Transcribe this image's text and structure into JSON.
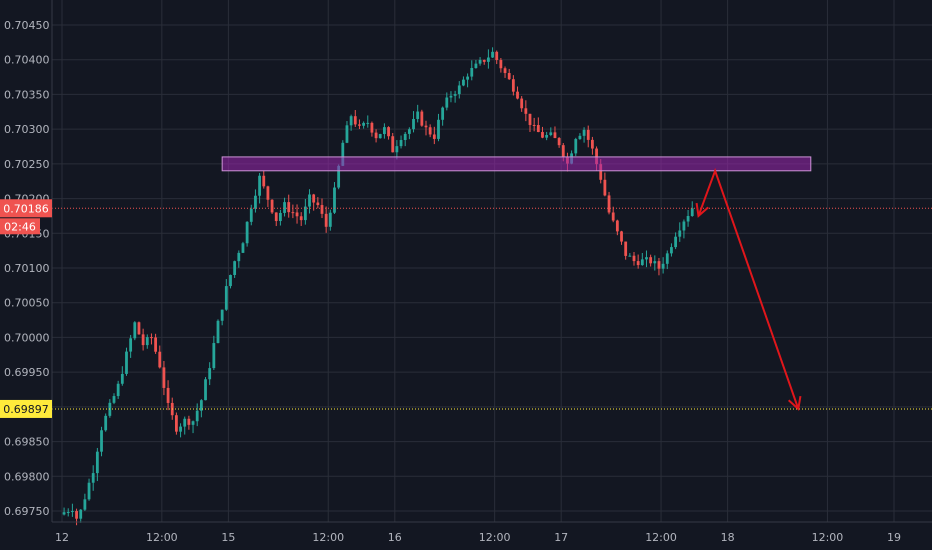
{
  "colors": {
    "background": "#131722",
    "grid": "#2a2e39",
    "up": "#26a69a",
    "down": "#ef5350",
    "zone": "#9c27b0",
    "arrow": "#e0161b",
    "current_price_line": "#ef5350",
    "target_line": "#ffeb3b"
  },
  "chart_data": {
    "type": "candlestick",
    "instrument_timeframe": "hourly",
    "y_axis": {
      "ylim": [
        0.6973,
        0.7047
      ],
      "ticks": [
        "0.69750",
        "0.69800",
        "0.69850",
        "0.69900",
        "0.69950",
        "0.70000",
        "0.70050",
        "0.70100",
        "0.70150",
        "0.70200",
        "0.70250",
        "0.70300",
        "0.70350",
        "0.70400",
        "0.70450"
      ],
      "tick_values": [
        0.6975,
        0.698,
        0.6985,
        0.699,
        0.6995,
        0.7,
        0.7005,
        0.701,
        0.7015,
        0.702,
        0.7025,
        0.703,
        0.7035,
        0.704,
        0.7045
      ]
    },
    "x_axis": {
      "xlim_hours": [
        -1,
        201
      ],
      "ticks": [
        "12",
        "12:00",
        "15",
        "12:00",
        "16",
        "12:00",
        "17",
        "12:00",
        "18",
        "12:00",
        "19"
      ],
      "tick_hours": [
        0,
        24,
        40,
        64,
        80,
        104,
        120,
        144,
        160,
        184,
        200
      ]
    },
    "price_anchors": [
      [
        0,
        0.69745
      ],
      [
        3,
        0.69755
      ],
      [
        4,
        0.6974
      ],
      [
        5,
        0.6975
      ],
      [
        6,
        0.6977
      ],
      [
        8,
        0.6981
      ],
      [
        10,
        0.6987
      ],
      [
        12,
        0.699
      ],
      [
        14,
        0.6993
      ],
      [
        16,
        0.69975
      ],
      [
        18,
        0.7002
      ],
      [
        20,
        0.6999
      ],
      [
        22,
        0.7
      ],
      [
        24,
        0.6996
      ],
      [
        26,
        0.699
      ],
      [
        28,
        0.6987
      ],
      [
        30,
        0.6988
      ],
      [
        32,
        0.6988
      ],
      [
        34,
        0.6991
      ],
      [
        36,
        0.6996
      ],
      [
        38,
        0.7002
      ],
      [
        40,
        0.7007
      ],
      [
        42,
        0.7011
      ],
      [
        44,
        0.7014
      ],
      [
        46,
        0.7019
      ],
      [
        48,
        0.7023
      ],
      [
        50,
        0.702
      ],
      [
        52,
        0.7017
      ],
      [
        54,
        0.7019
      ],
      [
        56,
        0.7018
      ],
      [
        58,
        0.7017
      ],
      [
        60,
        0.702
      ],
      [
        62,
        0.7019
      ],
      [
        64,
        0.7016
      ],
      [
        66,
        0.7021
      ],
      [
        68,
        0.7028
      ],
      [
        70,
        0.7032
      ],
      [
        72,
        0.703
      ],
      [
        74,
        0.7031
      ],
      [
        76,
        0.7029
      ],
      [
        78,
        0.703
      ],
      [
        80,
        0.7027
      ],
      [
        82,
        0.7029
      ],
      [
        84,
        0.703
      ],
      [
        86,
        0.7032
      ],
      [
        88,
        0.703
      ],
      [
        90,
        0.7029
      ],
      [
        92,
        0.7033
      ],
      [
        94,
        0.7035
      ],
      [
        96,
        0.7036
      ],
      [
        98,
        0.7038
      ],
      [
        100,
        0.7039
      ],
      [
        102,
        0.704
      ],
      [
        104,
        0.7041
      ],
      [
        106,
        0.7039
      ],
      [
        108,
        0.7037
      ],
      [
        110,
        0.7035
      ],
      [
        112,
        0.7032
      ],
      [
        114,
        0.703
      ],
      [
        116,
        0.7029
      ],
      [
        118,
        0.7029
      ],
      [
        120,
        0.7028
      ],
      [
        122,
        0.7025
      ],
      [
        124,
        0.7029
      ],
      [
        126,
        0.703
      ],
      [
        128,
        0.7027
      ],
      [
        130,
        0.7023
      ],
      [
        132,
        0.7018
      ],
      [
        134,
        0.7015
      ],
      [
        136,
        0.7012
      ],
      [
        138,
        0.7011
      ],
      [
        140,
        0.7011
      ],
      [
        142,
        0.7011
      ],
      [
        144,
        0.701
      ],
      [
        146,
        0.7012
      ],
      [
        148,
        0.7015
      ],
      [
        150,
        0.7017
      ],
      [
        152,
        0.70186
      ]
    ],
    "resistance_zone": {
      "y_low": 0.7024,
      "y_high": 0.7026,
      "x_start_hours": 38.5,
      "x_end_hours": 180
    },
    "forecast_path": [
      [
        153,
        0.70175
      ],
      [
        157,
        0.7024
      ],
      [
        177,
        0.69897
      ]
    ],
    "current_price": {
      "value": 0.70186,
      "label": "0.70186",
      "countdown": "02:46"
    },
    "target_price": {
      "value": 0.69897,
      "label": "0.69897"
    }
  }
}
